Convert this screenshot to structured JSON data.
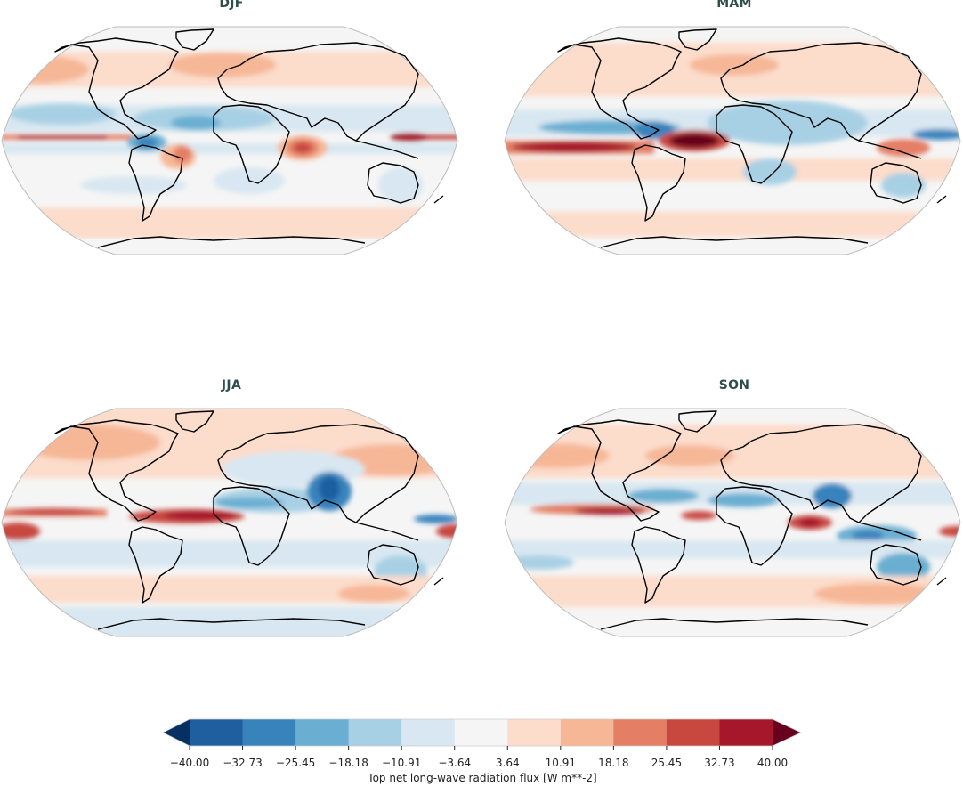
{
  "chart_data": {
    "type": "heatmap",
    "subtype": "geographic filled-contour maps (Robinson projection), 2x2 seasonal panels",
    "panels": [
      {
        "title": "DJF",
        "row": 0,
        "col": 0
      },
      {
        "title": "MAM",
        "row": 0,
        "col": 1
      },
      {
        "title": "JJA",
        "row": 1,
        "col": 0
      },
      {
        "title": "SON",
        "row": 1,
        "col": 1
      }
    ],
    "colorbar": {
      "label": "Top net long-wave radiation flux [W m**-2]",
      "orientation": "horizontal",
      "extend": "both",
      "vmin": -40.0,
      "vmax": 40.0,
      "levels": [
        -40.0,
        -32.73,
        -25.45,
        -18.18,
        -10.91,
        -3.64,
        3.64,
        10.91,
        18.18,
        25.45,
        32.73,
        40.0
      ],
      "tick_labels": [
        "−40.00",
        "−32.73",
        "−25.45",
        "−18.18",
        "−10.91",
        "−3.64",
        "3.64",
        "10.91",
        "18.18",
        "25.45",
        "32.73",
        "40.00"
      ],
      "colors": [
        "#1f5fa0",
        "#3983bd",
        "#6aafd2",
        "#a8d0e4",
        "#d8e7f1",
        "#f5f5f5",
        "#fcdccb",
        "#f6b797",
        "#e47f66",
        "#c8473f",
        "#a6172c"
      ],
      "under_color": "#053061",
      "over_color": "#67001f",
      "cmap": "RdBu_r"
    },
    "features": {
      "DJF": [
        "strong positive band along central Pacific equator",
        "negative over Amazon/northern S. America",
        "positive over NE Brazil",
        "strong positive over western Indian Ocean",
        "positive over Maritime Continent/west Pacific",
        "negative over Africa north of equator"
      ],
      "MAM": [
        "very strong positive band eastern Pacific and equatorial Atlantic south of equator",
        "negative over Africa and Amazon",
        "positive over Maritime Continent"
      ],
      "JJA": [
        "strong positive band tropical Atlantic north of equator",
        "strong negative over India/Bay of Bengal",
        "negative across Sahel",
        "positive over north Pacific"
      ],
      "SON": [
        "positive band along eastern Pacific ITCZ",
        "strong positive equatorial Indian Ocean",
        "negative over Indonesia/Australia",
        "negative over Sahel"
      ]
    }
  }
}
